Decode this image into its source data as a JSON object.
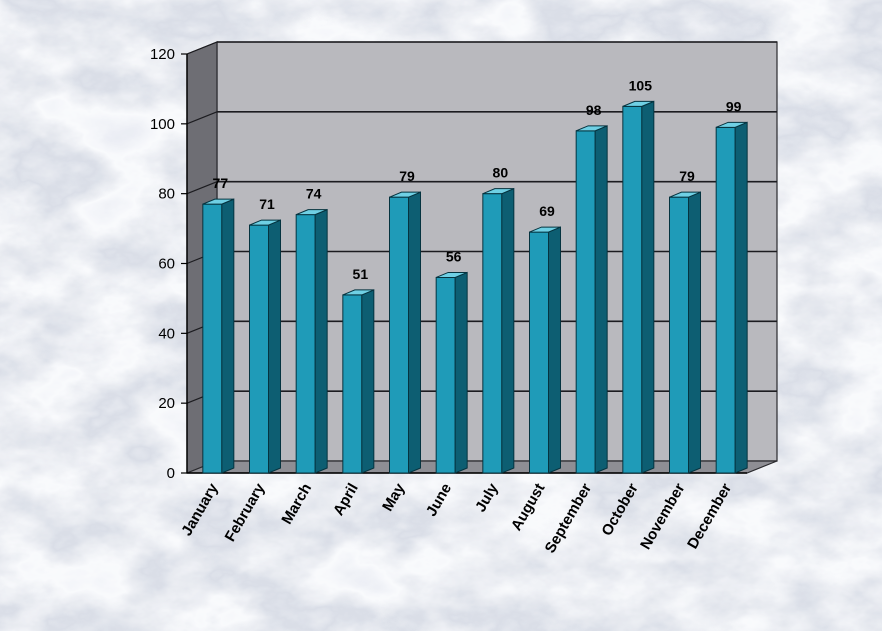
{
  "chart_data": {
    "type": "bar",
    "title": "",
    "xlabel": "",
    "ylabel": "",
    "categories": [
      "January",
      "February",
      "March",
      "April",
      "May",
      "June",
      "July",
      "August",
      "September",
      "October",
      "November",
      "December"
    ],
    "values": [
      77,
      71,
      74,
      51,
      79,
      56,
      80,
      69,
      98,
      105,
      79,
      99
    ],
    "ylim": [
      0,
      120
    ],
    "yticks": [
      0,
      20,
      40,
      60,
      80,
      100,
      120
    ],
    "grid": true,
    "legend": "none",
    "three_d": true,
    "colors": {
      "bar_front": "#1f9bb8",
      "bar_side": "#0d5e72",
      "bar_top": "#6fd0e4",
      "plot_back": "#b9b9be",
      "plot_floor": "#8e8e94",
      "plot_wall": "#6e6e74",
      "marble_base": "#e9ecf1"
    }
  }
}
